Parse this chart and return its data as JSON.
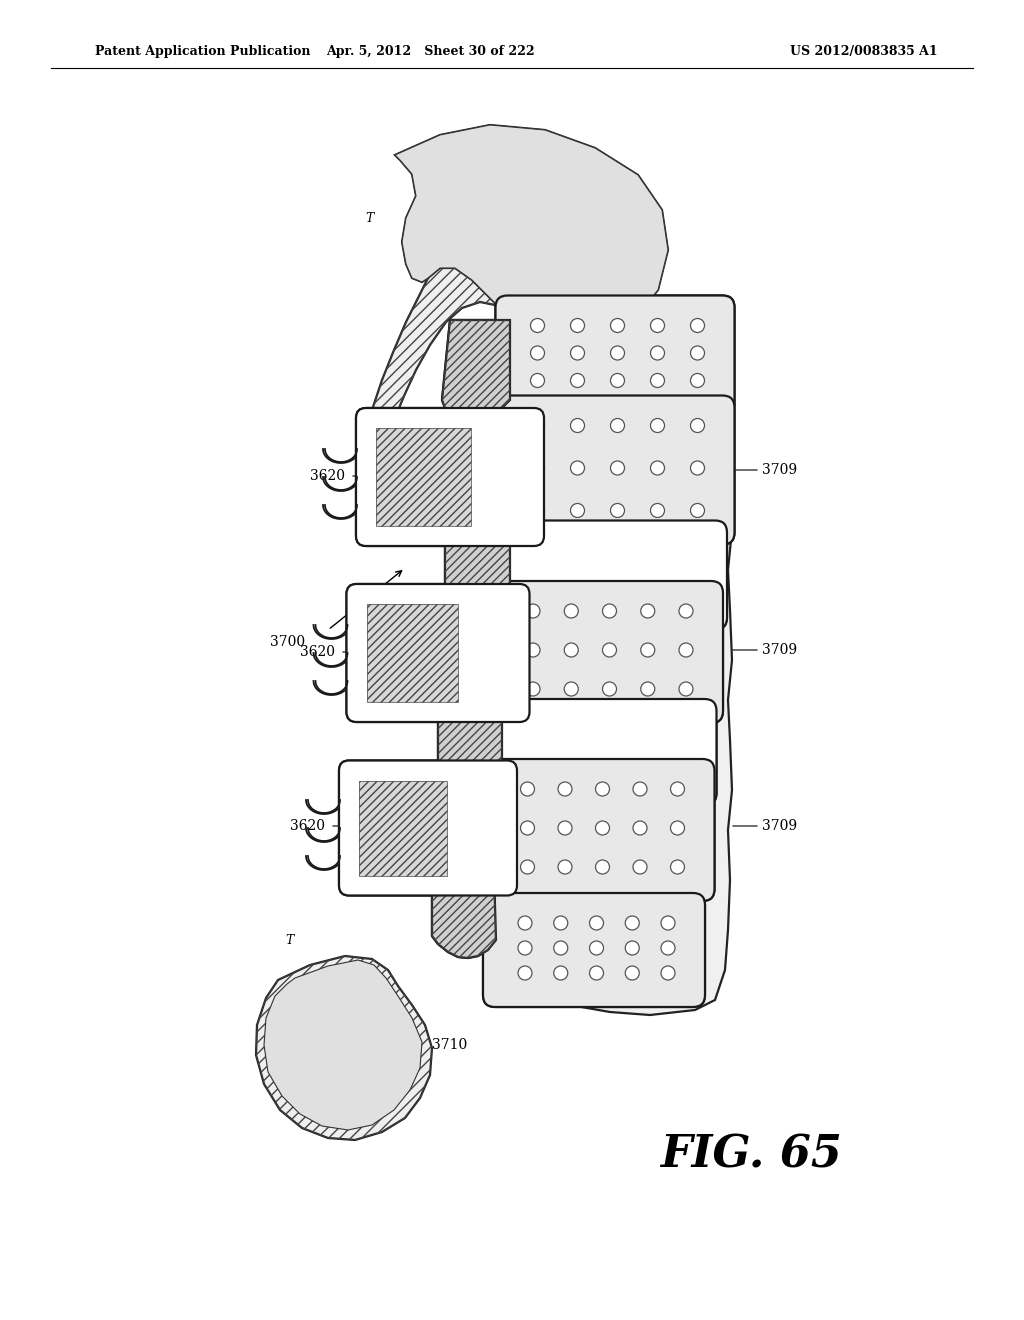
{
  "header_left": "Patent Application Publication",
  "header_mid": "Apr. 5, 2012   Sheet 30 of 222",
  "header_right": "US 2012/0083835 A1",
  "fig_label": "FIG. 65",
  "bg_color": "#ffffff"
}
